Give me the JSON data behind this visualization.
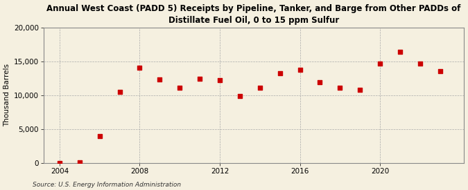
{
  "title": "Annual West Coast (PADD 5) Receipts by Pipeline, Tanker, and Barge from Other PADDs of\nDistillate Fuel Oil, 0 to 15 ppm Sulfur",
  "ylabel": "Thousand Barrels",
  "source": "Source: U.S. Energy Information Administration",
  "years": [
    2004,
    2005,
    2006,
    2007,
    2008,
    2009,
    2010,
    2011,
    2012,
    2013,
    2014,
    2015,
    2016,
    2017,
    2018,
    2019,
    2020,
    2021,
    2022,
    2023
  ],
  "values": [
    50,
    130,
    4000,
    10500,
    14000,
    12300,
    11100,
    12400,
    12200,
    9900,
    11100,
    13200,
    13700,
    11900,
    11100,
    10800,
    14700,
    16400,
    14700,
    13500
  ],
  "marker_color": "#cc0000",
  "marker_size": 4,
  "bg_color": "#f5f0e0",
  "plot_bg_color": "#f5f0e0",
  "grid_color": "#aaaaaa",
  "ylim": [
    0,
    20000
  ],
  "yticks": [
    0,
    5000,
    10000,
    15000,
    20000
  ],
  "xticks": [
    2004,
    2008,
    2012,
    2016,
    2020
  ],
  "xlim": [
    2003.2,
    2024.2
  ],
  "title_fontsize": 8.5,
  "label_fontsize": 7.5,
  "tick_fontsize": 7.5,
  "source_fontsize": 6.5
}
